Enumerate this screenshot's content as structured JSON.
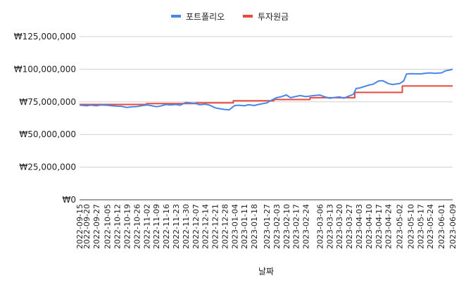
{
  "chart_data": {
    "type": "line",
    "title": "",
    "xlabel": "날짜",
    "ylabel": "",
    "ylim": [
      0,
      125000000
    ],
    "y_ticks": [
      "₩0",
      "₩25,000,000",
      "₩50,000,000",
      "₩75,000,000",
      "₩100,000,000",
      "₩125,000,000"
    ],
    "y_tick_values": [
      0,
      25000000,
      50000000,
      75000000,
      100000000,
      125000000
    ],
    "x_range": [
      "2022-09-15",
      "2023-06-09"
    ],
    "x_ticks": [
      "2022-09-15",
      "2022-09-20",
      "2022-09-27",
      "2022-10-05",
      "2022-10-12",
      "2022-10-19",
      "2022-10-26",
      "2022-11-02",
      "2022-11-09",
      "2022-11-16",
      "2022-11-23",
      "2022-11-30",
      "2022-12-07",
      "2022-12-14",
      "2022-12-21",
      "2022-12-28",
      "2023-01-04",
      "2023-01-11",
      "2023-01-18",
      "2023-01-27",
      "2023-02-03",
      "2023-02-10",
      "2023-02-17",
      "2023-02-24",
      "2023-03-06",
      "2023-03-13",
      "2023-03-20",
      "2023-03-27",
      "2023-04-03",
      "2023-04-10",
      "2023-04-17",
      "2023-04-24",
      "2023-05-02",
      "2023-05-10",
      "2023-05-17",
      "2023-05-24",
      "2023-06-01",
      "2023-06-09"
    ],
    "grid": true,
    "legend_position": "top",
    "series": [
      {
        "name": "포트폴리오",
        "color": "#4a86e8",
        "points": [
          [
            "2022-09-15",
            72500000
          ],
          [
            "2022-09-20",
            72000000
          ],
          [
            "2022-09-23",
            72500000
          ],
          [
            "2022-09-27",
            72000000
          ],
          [
            "2022-09-30",
            72600000
          ],
          [
            "2022-10-05",
            72400000
          ],
          [
            "2022-10-08",
            72000000
          ],
          [
            "2022-10-12",
            71700000
          ],
          [
            "2022-10-15",
            71600000
          ],
          [
            "2022-10-19",
            70700000
          ],
          [
            "2022-10-22",
            71200000
          ],
          [
            "2022-10-26",
            71400000
          ],
          [
            "2022-10-29",
            72000000
          ],
          [
            "2022-11-02",
            72600000
          ],
          [
            "2022-11-05",
            72200000
          ],
          [
            "2022-11-09",
            71300000
          ],
          [
            "2022-11-12",
            71800000
          ],
          [
            "2022-11-16",
            73000000
          ],
          [
            "2022-11-19",
            72600000
          ],
          [
            "2022-11-23",
            73000000
          ],
          [
            "2022-11-26",
            72400000
          ],
          [
            "2022-11-30",
            74500000
          ],
          [
            "2022-12-03",
            74200000
          ],
          [
            "2022-12-07",
            73800000
          ],
          [
            "2022-12-10",
            72800000
          ],
          [
            "2022-12-14",
            73200000
          ],
          [
            "2022-12-17",
            72500000
          ],
          [
            "2022-12-21",
            70500000
          ],
          [
            "2022-12-24",
            69800000
          ],
          [
            "2022-12-28",
            69200000
          ],
          [
            "2022-12-31",
            68800000
          ],
          [
            "2023-01-04",
            72200000
          ],
          [
            "2023-01-07",
            72400000
          ],
          [
            "2023-01-11",
            72000000
          ],
          [
            "2023-01-14",
            72800000
          ],
          [
            "2023-01-18",
            72200000
          ],
          [
            "2023-01-21",
            73000000
          ],
          [
            "2023-01-27",
            74200000
          ],
          [
            "2023-01-30",
            76000000
          ],
          [
            "2023-02-03",
            78200000
          ],
          [
            "2023-02-06",
            78800000
          ],
          [
            "2023-02-10",
            80300000
          ],
          [
            "2023-02-13",
            78200000
          ],
          [
            "2023-02-17",
            79200000
          ],
          [
            "2023-02-20",
            79800000
          ],
          [
            "2023-02-24",
            79000000
          ],
          [
            "2023-02-28",
            79600000
          ],
          [
            "2023-03-06",
            80200000
          ],
          [
            "2023-03-09",
            79000000
          ],
          [
            "2023-03-13",
            77800000
          ],
          [
            "2023-03-16",
            78300000
          ],
          [
            "2023-03-20",
            78800000
          ],
          [
            "2023-03-23",
            77800000
          ],
          [
            "2023-03-27",
            79500000
          ],
          [
            "2023-03-30",
            80800000
          ],
          [
            "2023-04-01",
            85300000
          ],
          [
            "2023-04-03",
            85500000
          ],
          [
            "2023-04-06",
            86500000
          ],
          [
            "2023-04-10",
            87800000
          ],
          [
            "2023-04-13",
            88500000
          ],
          [
            "2023-04-17",
            91000000
          ],
          [
            "2023-04-20",
            91200000
          ],
          [
            "2023-04-24",
            89000000
          ],
          [
            "2023-04-27",
            88300000
          ],
          [
            "2023-05-02",
            89000000
          ],
          [
            "2023-05-05",
            91000000
          ],
          [
            "2023-05-07",
            96300000
          ],
          [
            "2023-05-10",
            96600000
          ],
          [
            "2023-05-17",
            96400000
          ],
          [
            "2023-05-20",
            96800000
          ],
          [
            "2023-05-24",
            97200000
          ],
          [
            "2023-05-27",
            96800000
          ],
          [
            "2023-06-01",
            97200000
          ],
          [
            "2023-06-04",
            98800000
          ],
          [
            "2023-06-07",
            99400000
          ],
          [
            "2023-06-09",
            100000000
          ]
        ]
      },
      {
        "name": "투자원금",
        "color": "#e84a3c",
        "points": [
          [
            "2022-09-15",
            73000000
          ],
          [
            "2022-11-02",
            73000000
          ],
          [
            "2022-11-02",
            73700000
          ],
          [
            "2022-12-07",
            73700000
          ],
          [
            "2022-12-07",
            74200000
          ],
          [
            "2023-01-03",
            74200000
          ],
          [
            "2023-01-03",
            75800000
          ],
          [
            "2023-02-01",
            75800000
          ],
          [
            "2023-02-01",
            76800000
          ],
          [
            "2023-02-27",
            76800000
          ],
          [
            "2023-02-27",
            78200000
          ],
          [
            "2023-03-31",
            78200000
          ],
          [
            "2023-03-31",
            82200000
          ],
          [
            "2023-05-04",
            82200000
          ],
          [
            "2023-05-04",
            87200000
          ],
          [
            "2023-06-09",
            87200000
          ]
        ]
      }
    ]
  }
}
